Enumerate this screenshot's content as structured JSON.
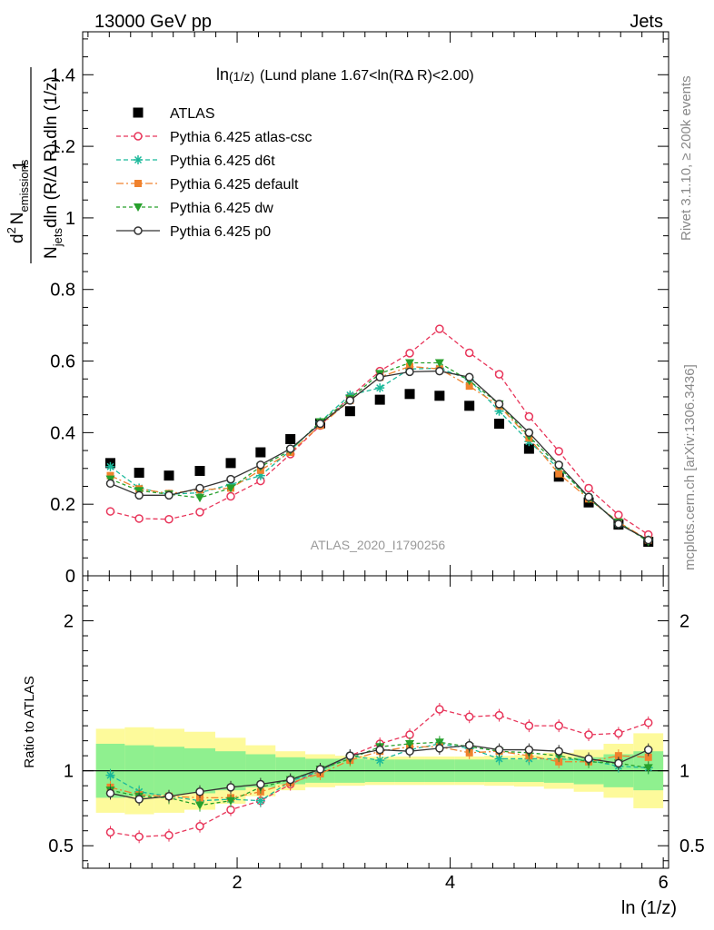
{
  "header": {
    "left": "13000 GeV pp",
    "right": "Jets"
  },
  "side_labels": {
    "rivet": "Rivet 3.1.10, ≥ 200k events",
    "mcplots": "mcplots.cern.ch [arXiv:1306.3436]"
  },
  "watermark": "ATLAS_2020_I1790256",
  "chart_data": [
    {
      "type": "scatter",
      "panel": "main",
      "title": "ln(1/z) (Lund plane 1.67<ln(RΔ R)<2.00)",
      "title_parts": {
        "a": "ln",
        "b": "(1/z)",
        "c": "(Lund plane 1.67<ln(RΔ R)<2.00)"
      },
      "ylabel": {
        "one": "1",
        "n_jets": "N",
        "jets_sub": "jets",
        "den": "dln (R/Δ R) dln (1/z)",
        "num_d": "d",
        "num_sup": "2",
        "num_N": "N",
        "num_sub": "emissions"
      },
      "xlabel": "ln (1/z)",
      "xlim": [
        0.55,
        6.05
      ],
      "ylim": [
        0,
        1.52
      ],
      "y_ticks": [
        "0",
        "0.2",
        "0.4",
        "0.6",
        "0.8",
        "1",
        "1.2",
        "1.4"
      ],
      "x_ticks": [
        "2",
        "4",
        "6"
      ],
      "legend_position": "top-left",
      "x": [
        0.81,
        1.08,
        1.36,
        1.65,
        1.94,
        2.22,
        2.5,
        2.78,
        3.06,
        3.34,
        3.62,
        3.9,
        4.18,
        4.46,
        4.74,
        5.02,
        5.3,
        5.58,
        5.86
      ],
      "series": [
        {
          "name": "ATLAS",
          "color": "#000000",
          "marker": "square",
          "values": [
            0.315,
            0.288,
            0.28,
            0.293,
            0.315,
            0.345,
            0.382,
            0.426,
            0.46,
            0.492,
            0.508,
            0.503,
            0.475,
            0.425,
            0.355,
            0.277,
            0.205,
            0.143,
            0.095
          ]
        },
        {
          "name": "Pythia 6.425 atlas-csc",
          "color": "#e8355a",
          "marker": "open-circle",
          "dash": "5,3",
          "values": [
            0.18,
            0.16,
            0.158,
            0.178,
            0.222,
            0.265,
            0.34,
            0.42,
            0.5,
            0.572,
            0.622,
            0.69,
            0.623,
            0.563,
            0.445,
            0.348,
            0.245,
            0.17,
            0.115
          ]
        },
        {
          "name": "Pythia 6.425 d6t",
          "color": "#1bb99a",
          "marker": "star",
          "dash": "5,3",
          "values": [
            0.305,
            0.245,
            0.228,
            0.232,
            0.255,
            0.28,
            0.35,
            0.43,
            0.505,
            0.525,
            0.578,
            0.58,
            0.548,
            0.46,
            0.375,
            0.3,
            0.22,
            0.145,
            0.1
          ]
        },
        {
          "name": "Pythia 6.425 default",
          "color": "#f0822d",
          "marker": "square",
          "dash": "8,3,2,3",
          "values": [
            0.28,
            0.243,
            0.23,
            0.24,
            0.245,
            0.295,
            0.345,
            0.42,
            0.49,
            0.555,
            0.585,
            0.578,
            0.53,
            0.475,
            0.385,
            0.285,
            0.215,
            0.15,
            0.1
          ]
        },
        {
          "name": "Pythia 6.425 dw",
          "color": "#27a02c",
          "marker": "triangle-down",
          "dash": "4,3",
          "values": [
            0.27,
            0.238,
            0.228,
            0.218,
            0.245,
            0.305,
            0.35,
            0.43,
            0.495,
            0.565,
            0.595,
            0.595,
            0.545,
            0.48,
            0.39,
            0.305,
            0.215,
            0.15,
            0.095
          ]
        },
        {
          "name": "Pythia 6.425 p0",
          "color": "#333333",
          "marker": "open-circle",
          "dash": "",
          "values": [
            0.258,
            0.225,
            0.225,
            0.245,
            0.27,
            0.31,
            0.355,
            0.425,
            0.49,
            0.555,
            0.57,
            0.572,
            0.555,
            0.48,
            0.4,
            0.31,
            0.22,
            0.145,
            0.1
          ]
        }
      ]
    },
    {
      "type": "line",
      "panel": "ratio",
      "ylabel": "Ratio to ATLAS",
      "ylim": [
        0.35,
        2.3
      ],
      "y_ticks": [
        "0.5",
        "1",
        "2"
      ],
      "x": [
        0.81,
        1.08,
        1.36,
        1.65,
        1.94,
        2.22,
        2.5,
        2.78,
        3.06,
        3.34,
        3.62,
        3.9,
        4.18,
        4.46,
        4.74,
        5.02,
        5.3,
        5.58,
        5.86
      ],
      "bands": {
        "inner": [
          0.18,
          0.17,
          0.16,
          0.15,
          0.13,
          0.11,
          0.09,
          0.08,
          0.08,
          0.075,
          0.075,
          0.075,
          0.075,
          0.075,
          0.075,
          0.08,
          0.09,
          0.11,
          0.13
        ],
        "outer": [
          0.28,
          0.29,
          0.28,
          0.26,
          0.22,
          0.17,
          0.13,
          0.11,
          0.1,
          0.095,
          0.095,
          0.095,
          0.095,
          0.1,
          0.105,
          0.12,
          0.14,
          0.18,
          0.25
        ]
      },
      "series": [
        {
          "name": "Pythia 6.425 atlas-csc",
          "color": "#e8355a",
          "marker": "open-circle",
          "dash": "5,3",
          "values": [
            0.59,
            0.56,
            0.57,
            0.63,
            0.74,
            0.8,
            0.91,
            1.0,
            1.1,
            1.18,
            1.24,
            1.41,
            1.36,
            1.37,
            1.3,
            1.3,
            1.24,
            1.25,
            1.32
          ]
        },
        {
          "name": "Pythia 6.425 d6t",
          "color": "#1bb99a",
          "marker": "star",
          "dash": "5,3",
          "values": [
            0.97,
            0.86,
            0.83,
            0.8,
            0.81,
            0.8,
            0.93,
            1.0,
            1.1,
            1.07,
            1.14,
            1.18,
            1.15,
            1.08,
            1.08,
            1.08,
            1.07,
            1.03,
            1.02
          ]
        },
        {
          "name": "Pythia 6.425 default",
          "color": "#f0822d",
          "marker": "square",
          "dash": "8,3,2,3",
          "values": [
            0.89,
            0.84,
            0.83,
            0.82,
            0.82,
            0.86,
            0.92,
            0.98,
            1.07,
            1.13,
            1.16,
            1.16,
            1.12,
            1.13,
            1.1,
            1.06,
            1.06,
            1.1,
            1.09
          ]
        },
        {
          "name": "Pythia 6.425 dw",
          "color": "#27a02c",
          "marker": "triangle-down",
          "dash": "4,3",
          "values": [
            0.87,
            0.83,
            0.82,
            0.77,
            0.8,
            0.89,
            0.94,
            1.01,
            1.08,
            1.16,
            1.18,
            1.19,
            1.16,
            1.13,
            1.12,
            1.1,
            1.06,
            1.05,
            1.02
          ]
        },
        {
          "name": "Pythia 6.425 p0",
          "color": "#333333",
          "marker": "open-circle",
          "dash": "",
          "values": [
            0.85,
            0.81,
            0.83,
            0.86,
            0.89,
            0.91,
            0.94,
            1.01,
            1.1,
            1.14,
            1.13,
            1.15,
            1.17,
            1.14,
            1.14,
            1.13,
            1.08,
            1.05,
            1.14
          ]
        }
      ]
    }
  ]
}
